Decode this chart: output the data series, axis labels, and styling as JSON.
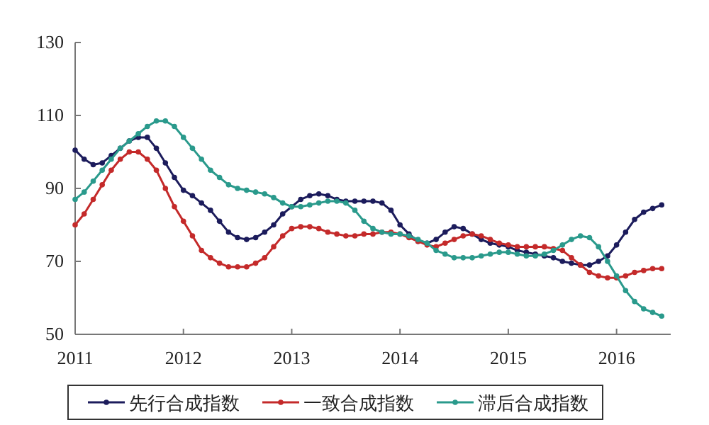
{
  "chart_data": {
    "type": "line",
    "x": [
      "2011-01",
      "2011-02",
      "2011-03",
      "2011-04",
      "2011-05",
      "2011-06",
      "2011-07",
      "2011-08",
      "2011-09",
      "2011-10",
      "2011-11",
      "2011-12",
      "2012-01",
      "2012-02",
      "2012-03",
      "2012-04",
      "2012-05",
      "2012-06",
      "2012-07",
      "2012-08",
      "2012-09",
      "2012-10",
      "2012-11",
      "2012-12",
      "2013-01",
      "2013-02",
      "2013-03",
      "2013-04",
      "2013-05",
      "2013-06",
      "2013-07",
      "2013-08",
      "2013-09",
      "2013-10",
      "2013-11",
      "2013-12",
      "2014-01",
      "2014-02",
      "2014-03",
      "2014-04",
      "2014-05",
      "2014-06",
      "2014-07",
      "2014-08",
      "2014-09",
      "2014-10",
      "2014-11",
      "2014-12",
      "2015-01",
      "2015-02",
      "2015-03",
      "2015-04",
      "2015-05",
      "2015-06",
      "2015-07",
      "2015-08",
      "2015-09",
      "2015-10",
      "2015-11",
      "2015-12",
      "2016-01",
      "2016-02",
      "2016-03",
      "2016-04",
      "2016-05",
      "2016-06"
    ],
    "series": [
      {
        "name": "先行合成指数",
        "color": "#1c1c5c",
        "values": [
          100.5,
          98,
          96.5,
          97,
          99,
          101,
          103,
          104,
          104,
          101,
          97,
          93,
          89.5,
          88,
          86,
          84,
          81,
          78,
          76.5,
          76,
          76.5,
          78,
          80,
          83,
          85,
          87,
          88,
          88.5,
          88,
          87,
          86.5,
          86.5,
          86.5,
          86.5,
          86,
          84,
          80,
          77.5,
          75.5,
          75,
          76,
          78,
          79.5,
          79,
          77.5,
          76,
          75,
          74.5,
          74,
          73,
          72.5,
          72,
          71.5,
          71,
          70,
          69.5,
          69,
          69,
          70,
          71.5,
          74.5,
          78,
          81.5,
          83.5,
          84.5,
          85.5
        ]
      },
      {
        "name": "一致合成指数",
        "color": "#c42a2a",
        "values": [
          80,
          83,
          87,
          91,
          95,
          98,
          100,
          100,
          98,
          95,
          90,
          85,
          81,
          77,
          73,
          71,
          69.5,
          68.5,
          68.5,
          68.5,
          69.5,
          71,
          74,
          77,
          79,
          79.5,
          79.5,
          79,
          78,
          77.5,
          77,
          77,
          77.5,
          77.5,
          78,
          78,
          77.5,
          76.5,
          75.5,
          74.5,
          74,
          75,
          76,
          77,
          77.5,
          77,
          76,
          75,
          74.5,
          74,
          74,
          74,
          74,
          73.5,
          73,
          71,
          69,
          67,
          66,
          65.5,
          65.5,
          66,
          67,
          67.5,
          68,
          68
        ]
      },
      {
        "name": "滞后合成指数",
        "color": "#2a9a8c",
        "values": [
          87,
          89,
          92,
          95,
          98,
          101,
          103,
          105,
          107,
          108.5,
          108.5,
          107,
          104,
          101,
          98,
          95,
          93,
          91,
          90,
          89.5,
          89,
          88.5,
          87.5,
          86,
          85,
          85,
          85.5,
          86,
          86.5,
          86.5,
          86,
          84,
          81,
          79,
          78,
          77.5,
          77.5,
          77,
          76,
          75,
          73,
          72,
          71,
          71,
          71,
          71.5,
          72,
          72.5,
          72.5,
          72,
          71.5,
          71.5,
          72,
          73,
          74.5,
          76,
          77,
          76.5,
          74,
          70,
          66,
          62,
          59,
          57,
          56,
          55
        ]
      }
    ],
    "xlim": [
      "2011-01",
      "2016-07"
    ],
    "xticks": [
      "2011",
      "2012",
      "2013",
      "2014",
      "2015",
      "2016"
    ],
    "ylim": [
      50,
      130
    ],
    "yticks": [
      50,
      70,
      90,
      110,
      130
    ],
    "grid": false,
    "legend": "bottom",
    "marker": "circle",
    "line_style": "solid"
  }
}
